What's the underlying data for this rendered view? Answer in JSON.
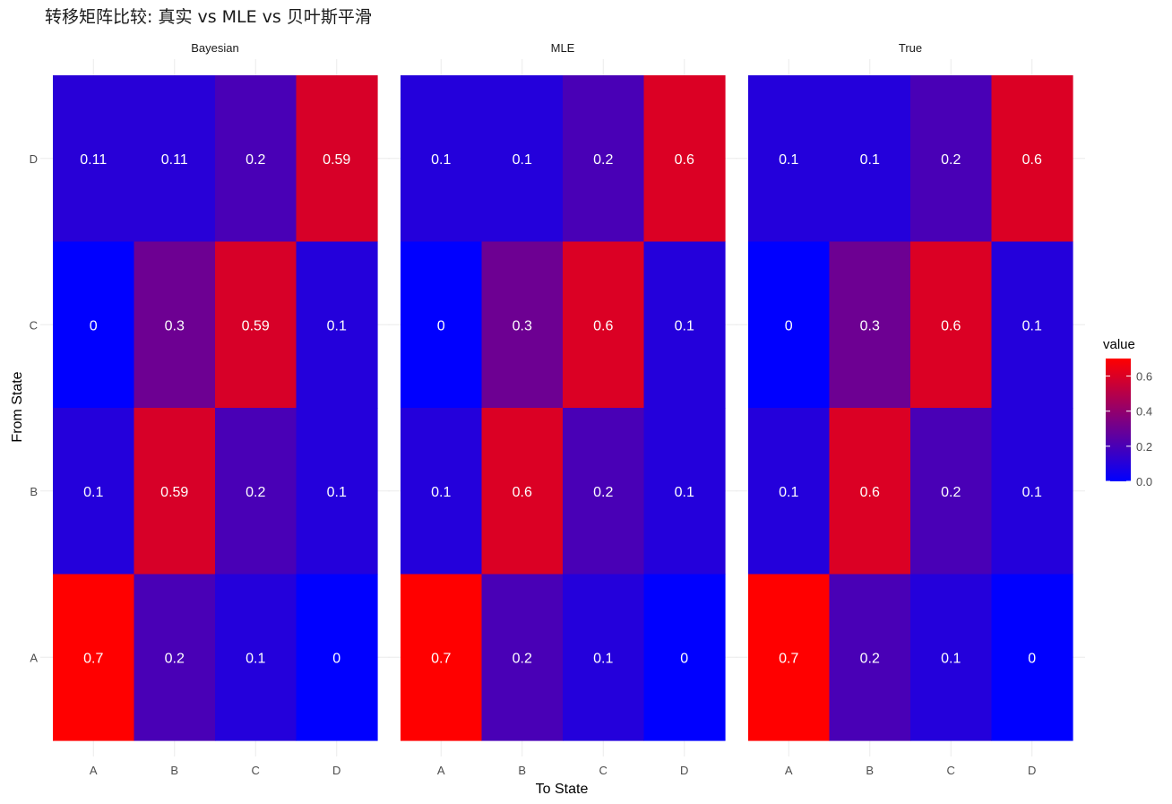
{
  "chart_data": {
    "type": "heatmap",
    "title": "转移矩阵比较: 真实 vs MLE vs 贝叶斯平滑",
    "xlabel": "To State",
    "ylabel": "From State",
    "x_categories": [
      "A",
      "B",
      "C",
      "D"
    ],
    "y_categories": [
      "A",
      "B",
      "C",
      "D"
    ],
    "facets": [
      {
        "name": "Bayesian",
        "rows": {
          "A": [
            0.7,
            0.2,
            0.1,
            0
          ],
          "B": [
            0.1,
            0.59,
            0.2,
            0.1
          ],
          "C": [
            0,
            0.3,
            0.59,
            0.1
          ],
          "D": [
            0.11,
            0.11,
            0.2,
            0.59
          ]
        },
        "labels": {
          "A": [
            "0.7",
            "0.2",
            "0.1",
            "0"
          ],
          "B": [
            "0.1",
            "0.59",
            "0.2",
            "0.1"
          ],
          "C": [
            "0",
            "0.3",
            "0.59",
            "0.1"
          ],
          "D": [
            "0.11",
            "0.11",
            "0.2",
            "0.59"
          ]
        }
      },
      {
        "name": "MLE",
        "rows": {
          "A": [
            0.7,
            0.2,
            0.1,
            0
          ],
          "B": [
            0.1,
            0.6,
            0.2,
            0.1
          ],
          "C": [
            0,
            0.3,
            0.6,
            0.1
          ],
          "D": [
            0.1,
            0.1,
            0.2,
            0.6
          ]
        },
        "labels": {
          "A": [
            "0.7",
            "0.2",
            "0.1",
            "0"
          ],
          "B": [
            "0.1",
            "0.6",
            "0.2",
            "0.1"
          ],
          "C": [
            "0",
            "0.3",
            "0.6",
            "0.1"
          ],
          "D": [
            "0.1",
            "0.1",
            "0.2",
            "0.6"
          ]
        }
      },
      {
        "name": "True",
        "rows": {
          "A": [
            0.7,
            0.2,
            0.1,
            0
          ],
          "B": [
            0.1,
            0.6,
            0.2,
            0.1
          ],
          "C": [
            0,
            0.3,
            0.6,
            0.1
          ],
          "D": [
            0.1,
            0.1,
            0.2,
            0.6
          ]
        },
        "labels": {
          "A": [
            "0.7",
            "0.2",
            "0.1",
            "0"
          ],
          "B": [
            "0.1",
            "0.6",
            "0.2",
            "0.1"
          ],
          "C": [
            "0",
            "0.3",
            "0.6",
            "0.1"
          ],
          "D": [
            "0.1",
            "0.1",
            "0.2",
            "0.6"
          ]
        }
      }
    ],
    "legend": {
      "title": "value",
      "placement": "right",
      "ticks": [
        "0.0",
        "0.2",
        "0.4",
        "0.6"
      ],
      "tick_values": [
        0,
        0.2,
        0.4,
        0.6
      ],
      "range": [
        0,
        0.7
      ],
      "low_color": "#0000ff",
      "high_color": "#ff0000"
    },
    "grid": true
  }
}
